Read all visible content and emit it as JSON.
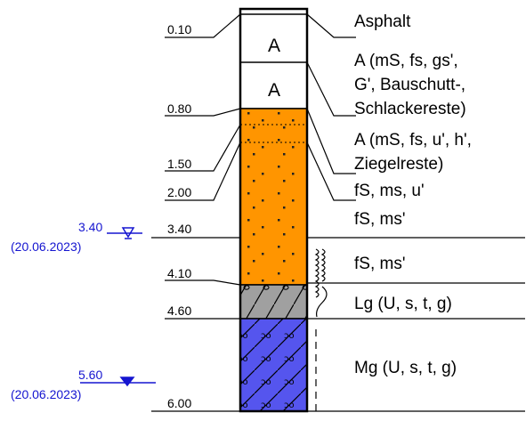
{
  "depth_labels": [
    "0.10",
    "0.80",
    "1.50",
    "2.00",
    "3.40",
    "4.10",
    "4.60",
    "6.00"
  ],
  "layer_codes": [
    "A",
    "A"
  ],
  "descriptions": [
    [
      "Asphalt"
    ],
    [
      "A (mS, fs, gs',",
      "G', Bauschutt-,",
      "Schlackereste)"
    ],
    [
      "A (mS, fs, u', h',",
      "Ziegelreste)"
    ],
    [
      "fS, ms, u'"
    ],
    [
      "fS, ms'"
    ],
    [
      "fS, ms'"
    ],
    [
      "Lg (U, s, t, g)"
    ],
    [
      "Mg (U, s, t, g)"
    ]
  ],
  "water_levels": [
    {
      "depth": "3.40",
      "date": "(20.06.2023)"
    },
    {
      "depth": "5.60",
      "date": "(20.06.2023)"
    }
  ]
}
